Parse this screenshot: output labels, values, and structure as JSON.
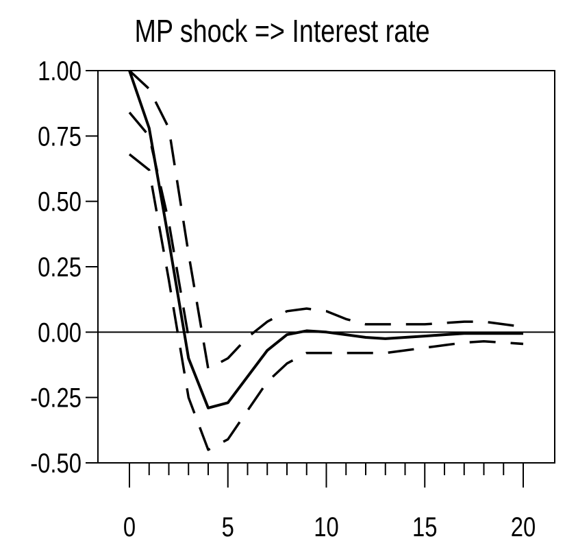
{
  "chart_data": {
    "type": "line",
    "title": "MP shock => Interest rate",
    "xlabel": "",
    "ylabel": "",
    "xlim": [
      -1.6,
      21.6
    ],
    "ylim": [
      -0.5,
      1.0
    ],
    "x_ticks": [
      0,
      5,
      10,
      15,
      20
    ],
    "x_tick_labels": [
      "0",
      "5",
      "10",
      "15",
      "20"
    ],
    "y_ticks": [
      1.0,
      0.75,
      0.5,
      0.25,
      0.0,
      -0.25,
      -0.5
    ],
    "y_tick_labels": [
      "1.00",
      "0.75",
      "0.50",
      "0.25",
      "0.00",
      "-0.25",
      "-0.50"
    ],
    "grid": false,
    "zero_line": true,
    "x": [
      0,
      1,
      2,
      3,
      4,
      5,
      6,
      7,
      8,
      9,
      10,
      11,
      12,
      13,
      14,
      15,
      16,
      17,
      18,
      19,
      20
    ],
    "series": [
      {
        "role": "response",
        "style": "solid",
        "values": [
          1.0,
          0.78,
          0.35,
          -0.1,
          -0.29,
          -0.27,
          -0.17,
          -0.07,
          -0.01,
          0.005,
          0.0,
          -0.01,
          -0.02,
          -0.025,
          -0.02,
          -0.015,
          -0.01,
          -0.005,
          -0.005,
          -0.005,
          -0.005
        ]
      },
      {
        "role": "upper",
        "style": "dashed",
        "values": [
          1.0,
          0.93,
          0.78,
          0.3,
          -0.14,
          -0.1,
          -0.02,
          0.04,
          0.08,
          0.09,
          0.08,
          0.05,
          0.03,
          0.03,
          0.03,
          0.03,
          0.035,
          0.04,
          0.04,
          0.03,
          0.02
        ]
      },
      {
        "role": "lower",
        "style": "dashed",
        "values": [
          0.68,
          0.62,
          0.2,
          -0.25,
          -0.45,
          -0.41,
          -0.3,
          -0.19,
          -0.12,
          -0.08,
          -0.08,
          -0.08,
          -0.08,
          -0.08,
          -0.07,
          -0.06,
          -0.05,
          -0.04,
          -0.035,
          -0.04,
          -0.045
        ]
      },
      {
        "role": "upper-outer",
        "style": "dashed",
        "values": [
          0.84,
          0.75,
          0.42,
          -0.02,
          null,
          null,
          null,
          null,
          null,
          null,
          null,
          null,
          null,
          null,
          null,
          null,
          null,
          null,
          null,
          null,
          null
        ]
      }
    ]
  }
}
